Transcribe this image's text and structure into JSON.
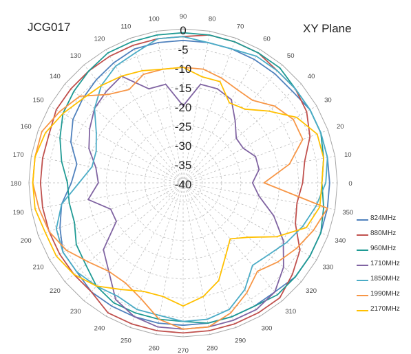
{
  "titles": {
    "left": "JCG017",
    "right": "XY  Plane"
  },
  "chart_data": {
    "type": "polar-line",
    "title": "",
    "radial_axis": {
      "min": -40,
      "max": 0,
      "step": 5,
      "tick_labels": [
        "0",
        "-5",
        "-10",
        "-15",
        "-20",
        "-25",
        "-30",
        "-35",
        "-40"
      ]
    },
    "angular_axis": {
      "unit": "degrees",
      "step": 10,
      "zero_direction": "right",
      "rotation": "counterclockwise",
      "tick_labels": [
        "0",
        "10",
        "20",
        "30",
        "40",
        "50",
        "60",
        "70",
        "80",
        "90",
        "100",
        "110",
        "120",
        "130",
        "140",
        "150",
        "160",
        "170",
        "180",
        "190",
        "200",
        "210",
        "220",
        "230",
        "240",
        "250",
        "260",
        "270",
        "280",
        "290",
        "300",
        "310",
        "320",
        "330",
        "340",
        "350"
      ]
    },
    "grid": true,
    "legend_position": "right",
    "angles": [
      0,
      10,
      20,
      30,
      40,
      50,
      60,
      70,
      80,
      90,
      100,
      110,
      120,
      130,
      140,
      150,
      160,
      170,
      180,
      190,
      200,
      210,
      220,
      230,
      240,
      250,
      260,
      270,
      280,
      290,
      300,
      310,
      320,
      330,
      340,
      350
    ],
    "series": [
      {
        "name": "824MHz",
        "color": "#4f81bd",
        "values": [
          -2,
          -2,
          -2,
          -2,
          -3,
          -3,
          -3,
          -3,
          -3,
          -3,
          -3,
          -3,
          -4,
          -5,
          -6,
          -7,
          -9,
          -12,
          -11,
          -8,
          -6,
          -4,
          -4,
          -3,
          -3,
          -3,
          -3,
          -3,
          -3,
          -3,
          -3,
          -3,
          -2,
          -2,
          -2,
          -2
        ]
      },
      {
        "name": "880MHz",
        "color": "#c0504d",
        "values": [
          -9,
          -8,
          -5,
          -3,
          -2,
          -2,
          -1,
          -1,
          -1,
          -2,
          -2,
          -2,
          -2,
          -2,
          -2,
          -2,
          -3,
          -3,
          -3,
          -3,
          -3,
          -3,
          -3,
          -3,
          -1,
          -1,
          -1,
          -1,
          -1,
          -1,
          -1,
          -1,
          -3,
          -5,
          -9,
          -10
        ]
      },
      {
        "name": "960MHz",
        "color": "#1f9a94",
        "values": [
          -4,
          -3,
          -2,
          -2,
          -2,
          -1,
          -1,
          -1,
          -1,
          -1,
          -1,
          -1,
          -1,
          -2,
          -3,
          -4,
          -6,
          -8,
          -10,
          -10,
          -10,
          -8,
          -7,
          -5,
          -4,
          -4,
          -4,
          -4,
          -3,
          -3,
          -3,
          -2,
          -2,
          -2,
          -2,
          -3
        ]
      },
      {
        "name": "1710MHz",
        "color": "#8064a2",
        "values": [
          -22,
          -20,
          -20,
          -22,
          -22,
          -19,
          -15,
          -14,
          -14,
          -20,
          -14,
          -14,
          -8,
          -9,
          -10,
          -12,
          -14,
          -17,
          -18,
          -15,
          -20,
          -20,
          -13,
          -10,
          -5,
          -3,
          -2,
          -2,
          -2,
          -2,
          -2,
          -3,
          -6,
          -10,
          -15,
          -20
        ]
      },
      {
        "name": "1850MHz",
        "color": "#4bacc6",
        "values": [
          -3,
          -2,
          -2,
          -2,
          -2,
          -2,
          -2,
          -3,
          -3,
          -2,
          -2,
          -4,
          -5,
          -7,
          -10,
          -14,
          -16,
          -16,
          -13,
          -8,
          -5,
          -4,
          -4,
          -5,
          -6,
          -5,
          -5,
          -4,
          -4,
          -5,
          -8,
          -12,
          -11,
          -9,
          -7,
          -5
        ]
      },
      {
        "name": "1990MHz",
        "color": "#f79646",
        "values": [
          -19,
          -12,
          -7,
          -7,
          -9,
          -12,
          -12,
          -11,
          -10,
          -10,
          -10,
          -10,
          -12,
          -10,
          -5,
          -3,
          -1,
          -1,
          -1,
          -2,
          -3,
          -5,
          -8,
          -10,
          -10,
          -8,
          -4,
          -2,
          -2,
          -4,
          -7,
          -10,
          -8,
          -6,
          -4,
          -2
        ]
      },
      {
        "name": "2170MHz",
        "color": "#ffc000",
        "values": [
          -4,
          -3,
          -3,
          -6,
          -11,
          -15,
          -16,
          -12,
          -12,
          -10,
          -10,
          -9,
          -8,
          -7,
          -6,
          -4,
          -2,
          -1,
          -1,
          -1,
          -2,
          -2,
          -3,
          -5,
          -8,
          -10,
          -10,
          -8,
          -10,
          -13,
          -18,
          -21,
          -18,
          -12,
          -6,
          -4
        ]
      }
    ]
  }
}
